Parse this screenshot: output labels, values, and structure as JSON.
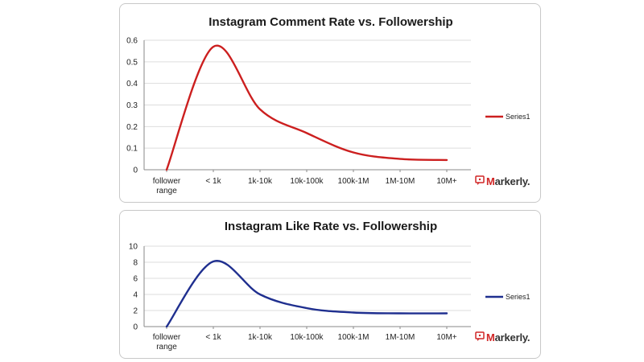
{
  "chart_data": [
    {
      "type": "line",
      "title": "Instagram Comment Rate vs. Followership",
      "categories": [
        "follower range",
        "< 1k",
        "1k-10k",
        "10k-100k",
        "100k-1M",
        "1M-10M",
        "10M+"
      ],
      "series": [
        {
          "name": "Series1",
          "color": "#cc1f1f",
          "values": [
            0,
            0.57,
            0.28,
            0.17,
            0.08,
            0.05,
            0.045
          ]
        }
      ],
      "ylim": [
        0,
        0.6
      ],
      "yticks": [
        "0",
        "0.1",
        "0.2",
        "0.3",
        "0.4",
        "0.5",
        "0.6"
      ],
      "legend": "right",
      "grid": true,
      "brand": "Markerly."
    },
    {
      "type": "line",
      "title": "Instagram Like Rate vs. Followership",
      "categories": [
        "follower range",
        "< 1k",
        "1k-10k",
        "10k-100k",
        "100k-1M",
        "1M-10M",
        "10M+"
      ],
      "series": [
        {
          "name": "Series1",
          "color": "#1f2f8f",
          "values": [
            0,
            8.1,
            4.0,
            2.3,
            1.75,
            1.65,
            1.65
          ]
        }
      ],
      "ylim": [
        0,
        10
      ],
      "yticks": [
        "0",
        "2",
        "4",
        "6",
        "8",
        "10"
      ],
      "legend": "right",
      "grid": true,
      "brand": "Markerly."
    }
  ]
}
